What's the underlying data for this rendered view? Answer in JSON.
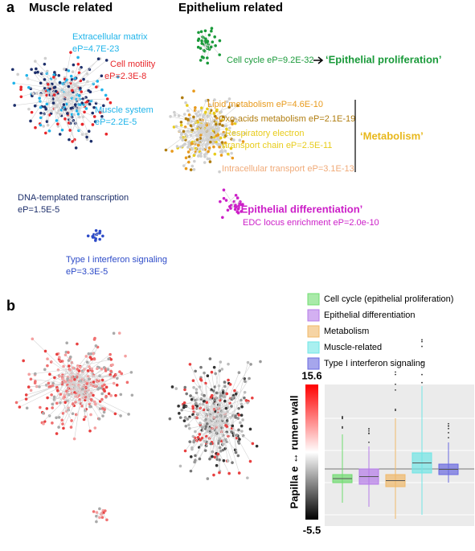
{
  "panel_a": {
    "label": "a",
    "left_title": "Muscle related",
    "right_title": "Epithelium related",
    "annotations": [
      {
        "text": "Extracellular matrix",
        "color": "#1fb4ea"
      },
      {
        "text": "eP=4.7E-23",
        "color": "#1fb4ea"
      },
      {
        "text": "Cell motility",
        "color": "#e8262a"
      },
      {
        "text": "eP=2.3E-8",
        "color": "#e8262a"
      },
      {
        "text": "Muscle system",
        "color": "#1fb4ea"
      },
      {
        "text": "eP=2.2E-5",
        "color": "#1fb4ea"
      },
      {
        "text": "DNA-templated transcription",
        "color": "#1d2f6b"
      },
      {
        "text": "eP=1.5E-5",
        "color": "#1d2f6b"
      },
      {
        "text": "Type I interferon signaling",
        "color": "#2d4bc8"
      },
      {
        "text": "eP=3.3E-5",
        "color": "#2d4bc8"
      },
      {
        "text": "Cell cycle eP=9.2E-32",
        "color": "#1a9a3a"
      },
      {
        "text": "‘Epithelial proliferation’",
        "color": "#1a9a3a"
      },
      {
        "text": "Lipid metabolism eP=4.6E-10",
        "color": "#e89a1c"
      },
      {
        "text": "Oxo-acids metabolism eP=2.1E-19",
        "color": "#b07d10"
      },
      {
        "text": "Respiratory electron",
        "color": "#e8cc1c"
      },
      {
        "text": "transport chain eP=2.5E-11",
        "color": "#e8cc1c"
      },
      {
        "text": "‘Metabolism’",
        "color": "#e8b81c"
      },
      {
        "text": "Intracellular transport eP=3.1E-13",
        "color": "#f0aa78"
      },
      {
        "text": "‘Epithelial differentiation’",
        "color": "#cc1fc8"
      },
      {
        "text": "EDC locus enrichment eP=2.0e-10",
        "color": "#cc1fc8"
      }
    ]
  },
  "panel_b": {
    "label": "b",
    "legend": [
      {
        "name": "Cell cycle (epithelial proliferation)",
        "color": "#6fdc6f"
      },
      {
        "name": "Epithelial differentiation",
        "color": "#b57be8"
      },
      {
        "name": "Metabolism",
        "color": "#f0b868"
      },
      {
        "name": "Muscle-related",
        "color": "#70e6e6"
      },
      {
        "name": "Type I interferon  signaling",
        "color": "#6a6ae0"
      }
    ],
    "colorbar": {
      "label": "Papilla e ↔ rumen wall",
      "max": 15.6,
      "min": -5.5
    }
  }
}
